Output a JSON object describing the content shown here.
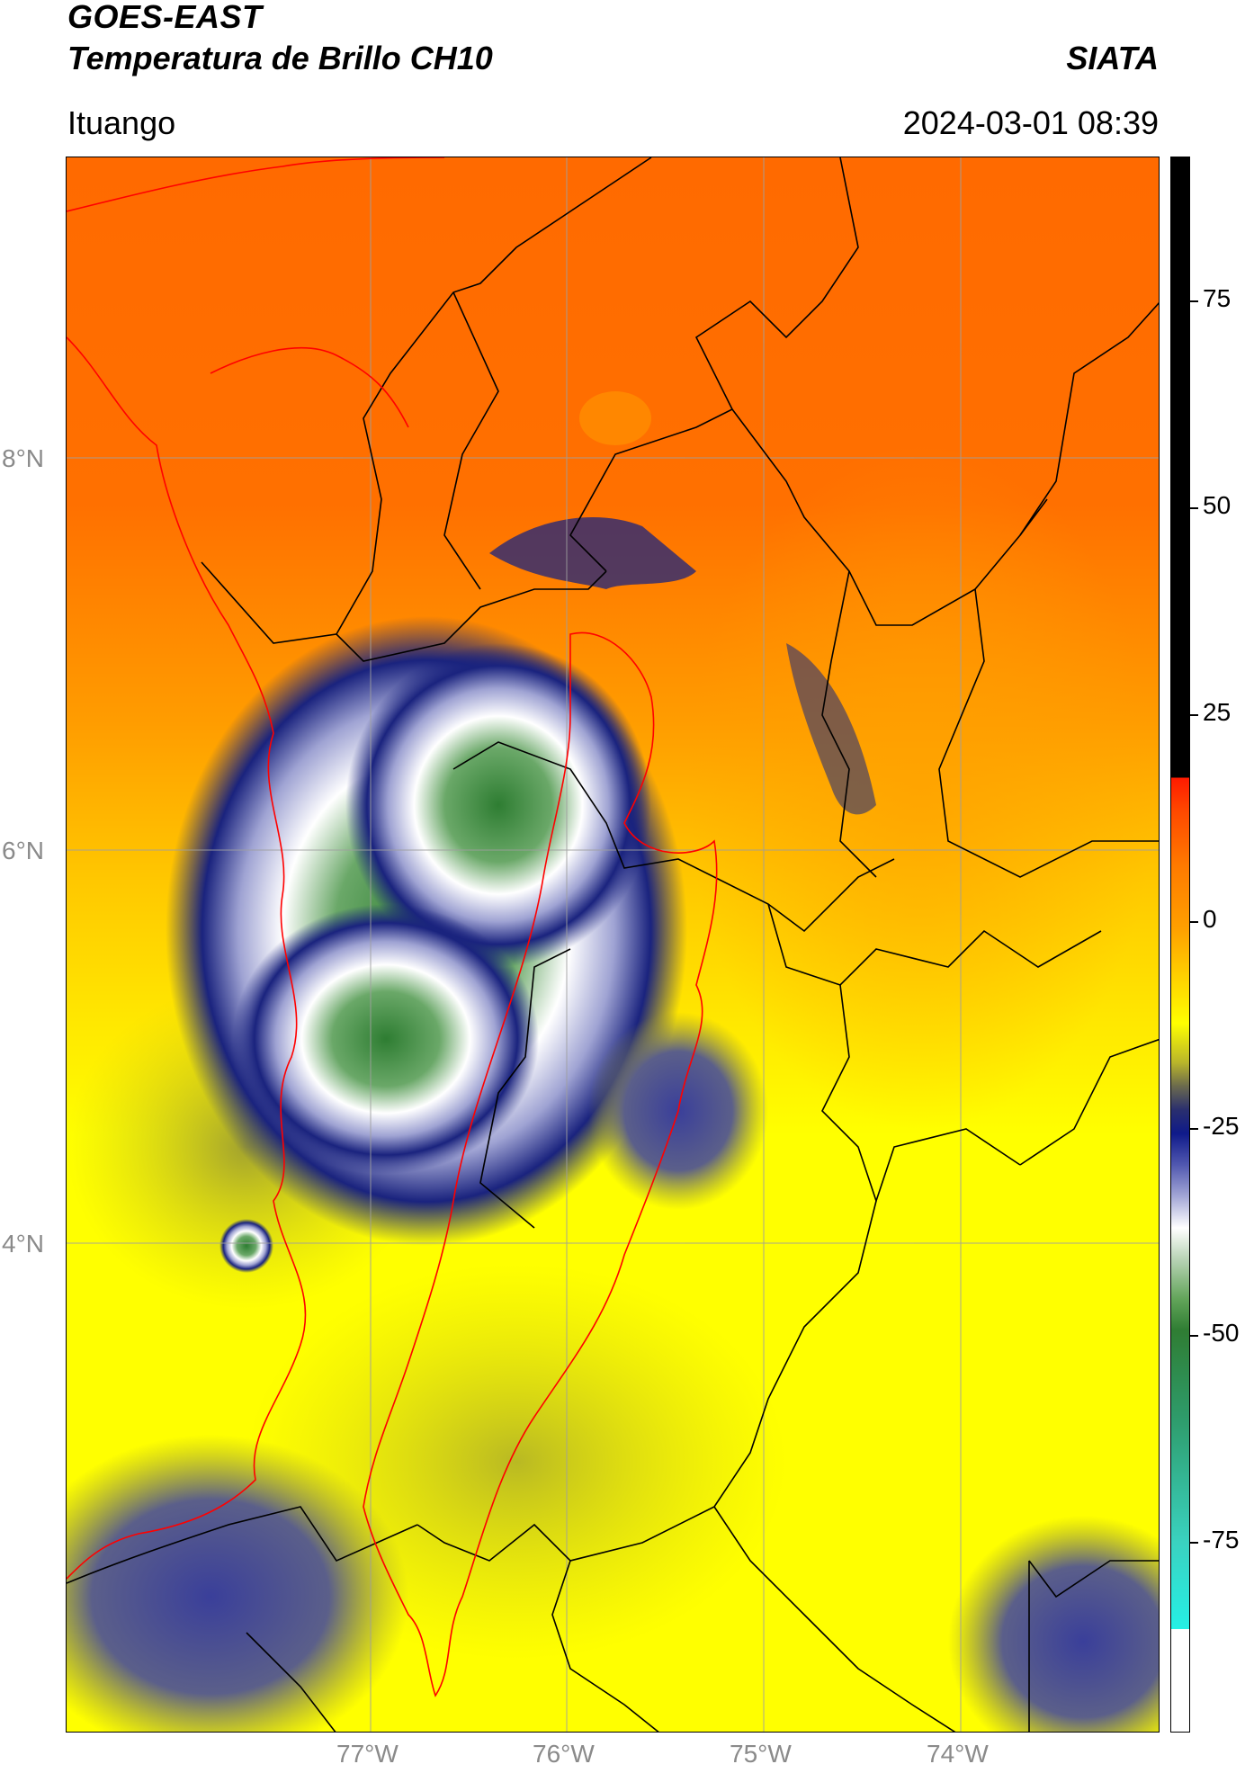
{
  "header": {
    "title": "GOES-EAST",
    "subtitle": "Temperatura de Brillo CH10",
    "organization": "SIATA",
    "location": "Ituango",
    "datetime": "2024-03-01 08:39"
  },
  "map": {
    "latitude_labels": [
      "8°N",
      "6°N",
      "4°N"
    ],
    "longitude_labels": [
      "77°W",
      "76°W",
      "75°W",
      "74°W"
    ],
    "colors": {
      "warm": "#ff6a00",
      "mild": "#ffd000",
      "cold_dark": "#1a237e",
      "coldest": "#2e7d32",
      "border_country": "#000000",
      "border_region": "#ff0000",
      "grid": "#9e9e9e"
    }
  },
  "colorbar": {
    "tick_labels": [
      "75",
      "50",
      "25",
      "0",
      "-25",
      "-50",
      "-75"
    ]
  }
}
